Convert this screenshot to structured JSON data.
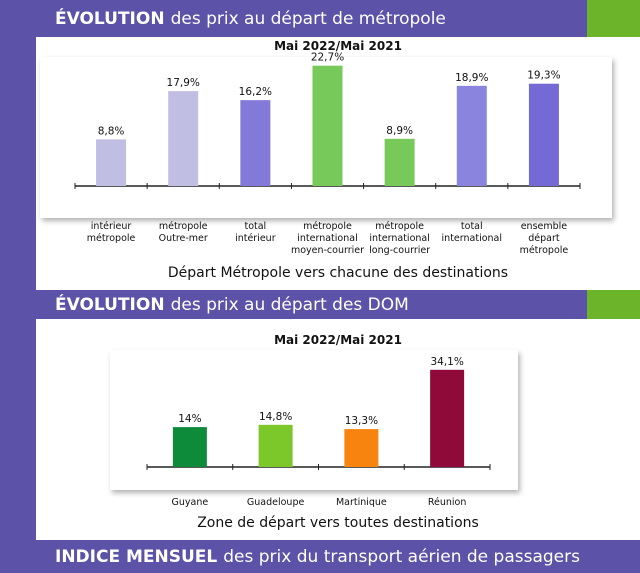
{
  "headers": [
    {
      "bold": "ÉVOLUTION",
      "rest": "des prix au départ de métropole"
    },
    {
      "bold": "ÉVOLUTION",
      "rest": "des prix au départ des DOM"
    },
    {
      "bold": "INDICE MENSUEL",
      "rest": "des prix du transport aérien de passagers"
    }
  ],
  "chart_data": [
    {
      "type": "bar",
      "title": "Mai 2022/Mai 2021",
      "caption": "Départ Métropole vers chacune des destinations",
      "categories": [
        "intérieur\nmétropole",
        "métropole\nOutre-mer",
        "total\nintérieur",
        "métropole\ninternational\nmoyen-courrier",
        "métropole\ninternational\nlong-courrier",
        "total\ninternational",
        "ensemble\ndépart\nmétropole"
      ],
      "values": [
        8.8,
        17.9,
        16.2,
        22.7,
        8.9,
        18.9,
        19.3
      ],
      "labels": [
        "8,8%",
        "17,9%",
        "16,2%",
        "22,7%",
        "8,9%",
        "18,9%",
        "19,3%"
      ],
      "colors": [
        "#c1bee3",
        "#c1bee3",
        "#8279d8",
        "#77c95a",
        "#77c95a",
        "#8b84de",
        "#7569d6"
      ]
    },
    {
      "type": "bar",
      "title": "Mai 2022/Mai 2021",
      "caption": "Zone de départ vers toutes destinations",
      "categories": [
        "Guyane",
        "Guadeloupe",
        "Martinique",
        "Réunion"
      ],
      "values": [
        14,
        14.8,
        13.3,
        34.1
      ],
      "labels": [
        "14%",
        "14,8%",
        "13,3%",
        "34,1%"
      ],
      "colors": [
        "#0e8a3b",
        "#7cc82a",
        "#f7840f",
        "#8f0a38"
      ]
    }
  ]
}
